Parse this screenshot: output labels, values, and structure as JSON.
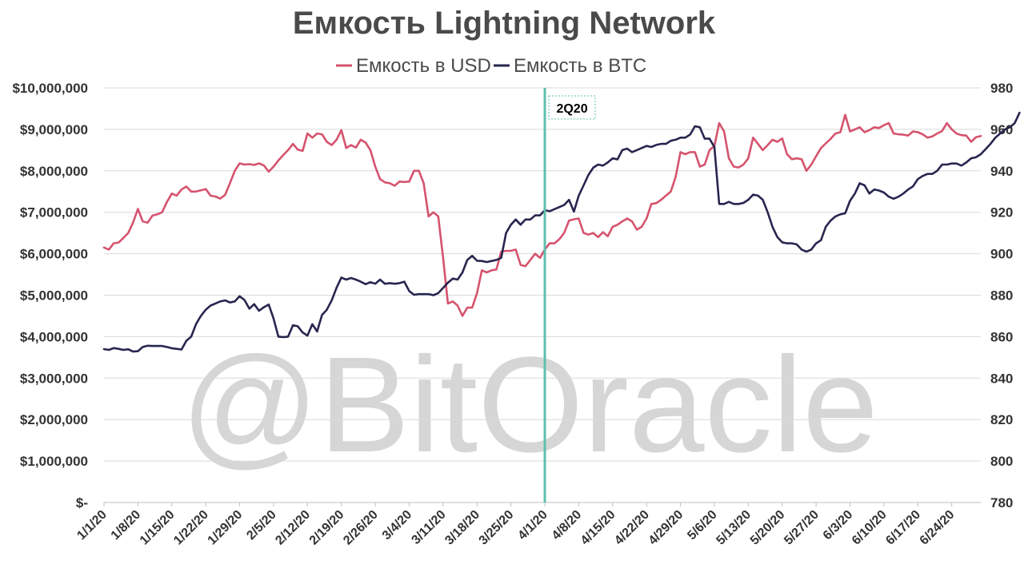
{
  "watermark": "@BitOracle",
  "chart_data": {
    "type": "line",
    "title": "Емкость Lightning Network",
    "legend_position": "top",
    "grid": true,
    "colors": {
      "usd": "#d5536e",
      "btc": "#27264f",
      "marker": "#5fbfae",
      "text": "#333333",
      "title": "#4a4a4a"
    },
    "series": [
      {
        "name": "Емкость в USD",
        "axis": "left",
        "values": [
          6150000,
          6100000,
          6250000,
          6270000,
          6380000,
          6500000,
          6750000,
          7080000,
          6780000,
          6750000,
          6920000,
          6950000,
          7000000,
          7250000,
          7450000,
          7400000,
          7550000,
          7620000,
          7500000,
          7500000,
          7530000,
          7560000,
          7400000,
          7380000,
          7330000,
          7420000,
          7700000,
          8000000,
          8180000,
          8150000,
          8160000,
          8140000,
          8180000,
          8130000,
          7980000,
          8100000,
          8250000,
          8380000,
          8500000,
          8650000,
          8510000,
          8480000,
          8900000,
          8800000,
          8900000,
          8880000,
          8700000,
          8620000,
          8750000,
          8980000,
          8550000,
          8620000,
          8560000,
          8750000,
          8680000,
          8500000,
          8100000,
          7800000,
          7720000,
          7700000,
          7640000,
          7740000,
          7730000,
          7740000,
          8000000,
          8000000,
          7700000,
          6900000,
          7000000,
          6900000,
          5900000,
          4800000,
          4850000,
          4750000,
          4500000,
          4700000,
          4700000,
          5050000,
          5600000,
          5550000,
          5600000,
          5620000,
          6050000,
          6070000,
          6070000,
          6100000,
          5730000,
          5700000,
          5850000,
          6000000,
          5900000,
          6100000,
          6250000,
          6250000,
          6350000,
          6500000,
          6800000,
          6830000,
          6850000,
          6500000,
          6460000,
          6500000,
          6400000,
          6520000,
          6420000,
          6650000,
          6700000,
          6780000,
          6850000,
          6780000,
          6580000,
          6650000,
          6850000,
          7200000,
          7220000,
          7300000,
          7400000,
          7500000,
          7850000,
          8450000,
          8400000,
          8450000,
          8450000,
          8100000,
          8150000,
          8500000,
          8600000,
          9150000,
          8950000,
          8300000,
          8100000,
          8080000,
          8150000,
          8300000,
          8800000,
          8650000,
          8500000,
          8620000,
          8750000,
          8700000,
          8780000,
          8400000,
          8280000,
          8300000,
          8280000,
          8000000,
          8150000,
          8350000,
          8550000,
          8660000,
          8770000,
          8900000,
          8930000,
          9350000,
          8950000,
          9000000,
          9050000,
          8930000,
          8980000,
          9050000,
          9030000,
          9100000,
          9150000,
          8900000,
          8880000,
          8870000,
          8850000,
          8950000,
          8930000,
          8880000,
          8800000,
          8830000,
          8900000,
          8960000,
          9150000,
          9000000,
          8900000,
          8860000,
          8850000,
          8700000,
          8810000,
          8840000
        ]
      },
      {
        "name": "Емкость в BTC",
        "axis": "right",
        "values": [
          854,
          853.6,
          854.5,
          854.1,
          853.6,
          853.9,
          852.8,
          853,
          855,
          855.6,
          855.5,
          855.5,
          855.5,
          855,
          854.4,
          854.1,
          853.8,
          858,
          860,
          866,
          870,
          873,
          875,
          876,
          877,
          877.5,
          876.5,
          877,
          879.5,
          877.7,
          873.5,
          875.7,
          872.5,
          874.2,
          875.5,
          868.8,
          860,
          859.8,
          860,
          865.5,
          865,
          862,
          860.5,
          866,
          862.5,
          870.5,
          873,
          877.5,
          883.6,
          888.5,
          887.5,
          888.3,
          887.5,
          886.5,
          885.3,
          886.3,
          885.5,
          887.5,
          885.5,
          885.8,
          885.5,
          885.8,
          886.5,
          882,
          880.2,
          880.5,
          880.5,
          880.5,
          880,
          881,
          883.5,
          886,
          888,
          887.5,
          891,
          897,
          899,
          896.6,
          896.5,
          896,
          896.5,
          897,
          898,
          910,
          914,
          916.5,
          914,
          916.5,
          916.5,
          918.5,
          918.5,
          921,
          920.5,
          921.5,
          922.5,
          923.5,
          926,
          920.3,
          928,
          933,
          938,
          941.5,
          943,
          942.5,
          944,
          946,
          945.5,
          950,
          950.7,
          949,
          950,
          951,
          952,
          951.5,
          952.5,
          953,
          953,
          954.5,
          955,
          956,
          956,
          957.5,
          961.5,
          961,
          955.5,
          955.5,
          951.5,
          924,
          924,
          925,
          924,
          924,
          924.5,
          926,
          928.5,
          928,
          926,
          920,
          913,
          908,
          905.5,
          905,
          905,
          904.5,
          902,
          901,
          902,
          905,
          906.5,
          913,
          916,
          918,
          919,
          919.5,
          925.5,
          929,
          934,
          933,
          929,
          931,
          930.5,
          929.5,
          927.5,
          926.5,
          927.5,
          929,
          931,
          932.5,
          936,
          937.5,
          938.5,
          938.5,
          940,
          943,
          943,
          943.5,
          943.5,
          942.5,
          944,
          946,
          946.5,
          948,
          950.5,
          953,
          956,
          958,
          960,
          961,
          963,
          968
        ]
      }
    ],
    "x_labels": [
      "1/1/20",
      "1/8/20",
      "1/15/20",
      "1/22/20",
      "1/29/20",
      "2/5/20",
      "2/12/20",
      "2/19/20",
      "2/26/20",
      "3/4/20",
      "3/11/20",
      "3/18/20",
      "3/25/20",
      "4/1/20",
      "4/8/20",
      "4/15/20",
      "4/22/20",
      "4/29/20",
      "5/6/20",
      "5/13/20",
      "5/20/20",
      "5/27/20",
      "6/3/20",
      "6/10/20",
      "6/17/20",
      "6/24/20"
    ],
    "x_label_step": 7,
    "y_left": {
      "min": 0,
      "max": 10000000,
      "ticks": [
        "$-",
        "$1,000,000",
        "$2,000,000",
        "$3,000,000",
        "$4,000,000",
        "$5,000,000",
        "$6,000,000",
        "$7,000,000",
        "$8,000,000",
        "$9,000,000",
        "$10,000,000"
      ]
    },
    "y_right": {
      "min": 780,
      "max": 980,
      "ticks": [
        "780",
        "800",
        "820",
        "840",
        "860",
        "880",
        "900",
        "920",
        "940",
        "960",
        "980"
      ]
    },
    "annotations": [
      {
        "type": "vertical-line",
        "at_label": "4/1/20",
        "label": "2Q20"
      }
    ]
  }
}
